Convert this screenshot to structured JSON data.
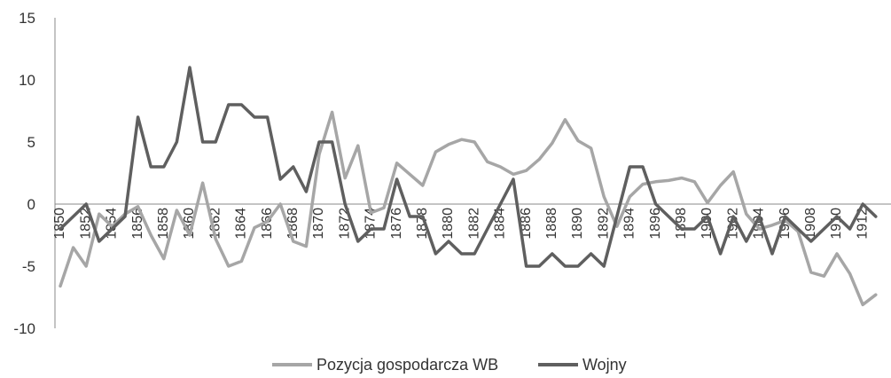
{
  "chart_data": {
    "type": "line",
    "title": "",
    "xlabel": "",
    "ylabel": "",
    "ylim": [
      -10,
      15
    ],
    "yticks": [
      15,
      10,
      5,
      0,
      -5,
      -10
    ],
    "x": [
      1850,
      1851,
      1852,
      1853,
      1854,
      1855,
      1856,
      1857,
      1858,
      1859,
      1860,
      1861,
      1862,
      1863,
      1864,
      1865,
      1866,
      1867,
      1868,
      1869,
      1870,
      1871,
      1872,
      1873,
      1874,
      1875,
      1876,
      1877,
      1878,
      1879,
      1880,
      1881,
      1882,
      1883,
      1884,
      1885,
      1886,
      1887,
      1888,
      1889,
      1890,
      1891,
      1892,
      1893,
      1894,
      1895,
      1896,
      1897,
      1898,
      1899,
      1900,
      1901,
      1902,
      1903,
      1904,
      1905,
      1906,
      1907,
      1908,
      1909,
      1910,
      1911,
      1912,
      1913
    ],
    "xtick_labels": [
      "1850",
      "1852",
      "1854",
      "1856",
      "1858",
      "1860",
      "1862",
      "1864",
      "1866",
      "1868",
      "1870",
      "1872",
      "1874",
      "1876",
      "1878",
      "1880",
      "1882",
      "1884",
      "1886",
      "1888",
      "1890",
      "1892",
      "1894",
      "1896",
      "1898",
      "1900",
      "1902",
      "1904",
      "1906",
      "1908",
      "1910",
      "1912"
    ],
    "series": [
      {
        "name": "Pozycja gospodarcza WB",
        "color": "#a6a6a6",
        "values": [
          -6.6,
          -3.5,
          -5.0,
          -0.8,
          -1.8,
          -0.8,
          -0.2,
          -2.5,
          -4.4,
          -0.5,
          -2.5,
          1.7,
          -2.8,
          -5.0,
          -4.6,
          -1.9,
          -1.4,
          0.0,
          -3.0,
          -3.4,
          4.0,
          7.4,
          2.1,
          4.7,
          -0.7,
          -0.3,
          3.3,
          2.4,
          1.5,
          4.2,
          4.8,
          5.2,
          5.0,
          3.4,
          3.0,
          2.4,
          2.7,
          3.6,
          4.9,
          6.8,
          5.1,
          4.5,
          0.6,
          -1.8,
          0.6,
          1.6,
          1.8,
          1.9,
          2.1,
          1.8,
          0.1,
          1.5,
          2.6,
          -0.8,
          -2.0,
          -1.7,
          -1.3,
          -2.2,
          -5.5,
          -5.8,
          -4.0,
          -5.6,
          -8.1,
          -7.3
        ]
      },
      {
        "name": "Wojny",
        "color": "#5f5f5f",
        "values": [
          -2,
          -1,
          0,
          -3,
          -2,
          -1,
          7,
          3,
          3,
          5,
          11,
          5,
          5,
          8,
          8,
          7,
          7,
          2,
          3,
          1,
          5,
          5,
          0,
          -3,
          -2,
          -2,
          2,
          -1,
          -1,
          -4,
          -3,
          -4,
          -4,
          -2,
          0,
          2,
          -5,
          -5,
          -4,
          -5,
          -5,
          -4,
          -5,
          -1,
          3,
          3,
          0,
          -1,
          -2,
          -2,
          -1,
          -4,
          -1,
          -3,
          -1,
          -4,
          -1,
          -2,
          -3,
          -2,
          -1,
          -2,
          0,
          -1
        ]
      }
    ],
    "legend_position": "bottom",
    "grid": false
  }
}
